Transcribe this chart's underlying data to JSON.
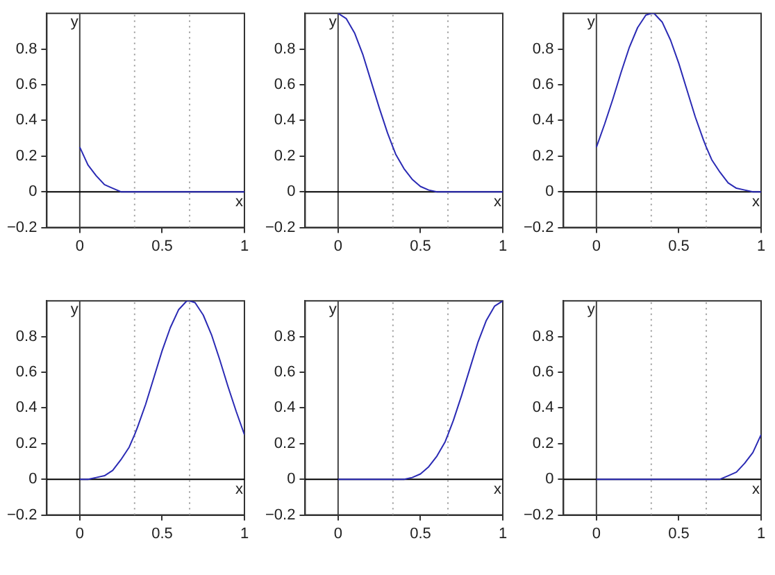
{
  "chart_data": [
    {
      "type": "line",
      "x": [
        0,
        0.05,
        0.1,
        0.15,
        0.2,
        0.25,
        0.3,
        0.333,
        0.35,
        0.4,
        0.45,
        0.5,
        0.55,
        0.6,
        0.65,
        0.667,
        0.7,
        0.75,
        0.8,
        0.85,
        0.9,
        0.95,
        1
      ],
      "values": [
        0.25,
        0.15,
        0.09,
        0.04,
        0.02,
        0,
        0,
        0,
        0,
        0,
        0,
        0,
        0,
        0,
        0,
        0,
        0,
        0,
        0,
        0,
        0,
        0,
        0
      ],
      "color": "#2a2ab4",
      "xlim": [
        -0.2,
        1
      ],
      "ylim": [
        -0.2,
        1
      ],
      "xticks": [
        0,
        0.5,
        1
      ],
      "yticks": [
        -0.2,
        0,
        0.2,
        0.4,
        0.6,
        0.8
      ],
      "ref_lines": [
        {
          "axis": "x",
          "value": 0,
          "label": "y",
          "color": "#444444"
        },
        {
          "axis": "y",
          "value": 0,
          "label": "x",
          "color": "#000000"
        },
        {
          "axis": "x",
          "value": 0.333,
          "color": "#999999",
          "line_style": "dotted"
        },
        {
          "axis": "x",
          "value": 0.667,
          "color": "#999999",
          "line_style": "dotted"
        }
      ]
    },
    {
      "type": "line",
      "x": [
        0,
        0.05,
        0.1,
        0.15,
        0.2,
        0.25,
        0.3,
        0.333,
        0.35,
        0.4,
        0.45,
        0.5,
        0.55,
        0.6,
        0.65,
        0.667,
        0.7,
        0.75,
        0.8,
        0.85,
        0.9,
        0.95,
        1
      ],
      "values": [
        1,
        0.97,
        0.89,
        0.77,
        0.62,
        0.47,
        0.33,
        0.25,
        0.21,
        0.13,
        0.07,
        0.03,
        0.01,
        0,
        0,
        0,
        0,
        0,
        0,
        0,
        0,
        0,
        0
      ],
      "color": "#2a2ab4",
      "xlim": [
        -0.2,
        1
      ],
      "ylim": [
        -0.2,
        1
      ],
      "xticks": [
        0,
        0.5,
        1
      ],
      "yticks": [
        -0.2,
        0,
        0.2,
        0.4,
        0.6,
        0.8
      ],
      "ref_lines": [
        {
          "axis": "x",
          "value": 0,
          "label": "y",
          "color": "#444444"
        },
        {
          "axis": "y",
          "value": 0,
          "label": "x",
          "color": "#000000"
        },
        {
          "axis": "x",
          "value": 0.333,
          "color": "#999999",
          "line_style": "dotted"
        },
        {
          "axis": "x",
          "value": 0.667,
          "color": "#999999",
          "line_style": "dotted"
        }
      ]
    },
    {
      "type": "line",
      "x": [
        0,
        0.05,
        0.1,
        0.15,
        0.2,
        0.25,
        0.3,
        0.333,
        0.35,
        0.4,
        0.45,
        0.5,
        0.55,
        0.6,
        0.65,
        0.667,
        0.7,
        0.75,
        0.8,
        0.85,
        0.9,
        0.95,
        1
      ],
      "values": [
        0.25,
        0.38,
        0.52,
        0.67,
        0.81,
        0.92,
        0.99,
        1,
        1,
        0.95,
        0.85,
        0.72,
        0.57,
        0.42,
        0.29,
        0.25,
        0.18,
        0.11,
        0.05,
        0.02,
        0.01,
        0,
        0
      ],
      "color": "#2a2ab4",
      "xlim": [
        -0.2,
        1
      ],
      "ylim": [
        -0.2,
        1
      ],
      "xticks": [
        0,
        0.5,
        1
      ],
      "yticks": [
        -0.2,
        0,
        0.2,
        0.4,
        0.6,
        0.8
      ],
      "ref_lines": [
        {
          "axis": "x",
          "value": 0,
          "label": "y",
          "color": "#444444"
        },
        {
          "axis": "y",
          "value": 0,
          "label": "x",
          "color": "#000000"
        },
        {
          "axis": "x",
          "value": 0.333,
          "color": "#999999",
          "line_style": "dotted"
        },
        {
          "axis": "x",
          "value": 0.667,
          "color": "#999999",
          "line_style": "dotted"
        }
      ]
    },
    {
      "type": "line",
      "x": [
        0,
        0.05,
        0.1,
        0.15,
        0.2,
        0.25,
        0.3,
        0.333,
        0.35,
        0.4,
        0.45,
        0.5,
        0.55,
        0.6,
        0.65,
        0.667,
        0.7,
        0.75,
        0.8,
        0.85,
        0.9,
        0.95,
        1
      ],
      "values": [
        0,
        0,
        0.01,
        0.02,
        0.05,
        0.11,
        0.18,
        0.25,
        0.29,
        0.42,
        0.57,
        0.72,
        0.85,
        0.95,
        1,
        1,
        0.99,
        0.92,
        0.81,
        0.67,
        0.52,
        0.38,
        0.25
      ],
      "color": "#2a2ab4",
      "xlim": [
        -0.2,
        1
      ],
      "ylim": [
        -0.2,
        1
      ],
      "xticks": [
        0,
        0.5,
        1
      ],
      "yticks": [
        -0.2,
        0,
        0.2,
        0.4,
        0.6,
        0.8
      ],
      "ref_lines": [
        {
          "axis": "x",
          "value": 0,
          "label": "y",
          "color": "#444444"
        },
        {
          "axis": "y",
          "value": 0,
          "label": "x",
          "color": "#000000"
        },
        {
          "axis": "x",
          "value": 0.333,
          "color": "#999999",
          "line_style": "dotted"
        },
        {
          "axis": "x",
          "value": 0.667,
          "color": "#999999",
          "line_style": "dotted"
        }
      ]
    },
    {
      "type": "line",
      "x": [
        0,
        0.05,
        0.1,
        0.15,
        0.2,
        0.25,
        0.3,
        0.333,
        0.35,
        0.4,
        0.45,
        0.5,
        0.55,
        0.6,
        0.65,
        0.667,
        0.7,
        0.75,
        0.8,
        0.85,
        0.9,
        0.95,
        1
      ],
      "values": [
        0,
        0,
        0,
        0,
        0,
        0,
        0,
        0,
        0,
        0,
        0.01,
        0.03,
        0.07,
        0.13,
        0.21,
        0.25,
        0.33,
        0.47,
        0.62,
        0.77,
        0.89,
        0.97,
        1
      ],
      "color": "#2a2ab4",
      "xlim": [
        -0.2,
        1
      ],
      "ylim": [
        -0.2,
        1
      ],
      "xticks": [
        0,
        0.5,
        1
      ],
      "yticks": [
        -0.2,
        0,
        0.2,
        0.4,
        0.6,
        0.8
      ],
      "ref_lines": [
        {
          "axis": "x",
          "value": 0,
          "label": "y",
          "color": "#444444"
        },
        {
          "axis": "y",
          "value": 0,
          "label": "x",
          "color": "#000000"
        },
        {
          "axis": "x",
          "value": 0.333,
          "color": "#999999",
          "line_style": "dotted"
        },
        {
          "axis": "x",
          "value": 0.667,
          "color": "#999999",
          "line_style": "dotted"
        }
      ]
    },
    {
      "type": "line",
      "x": [
        0,
        0.05,
        0.1,
        0.15,
        0.2,
        0.25,
        0.3,
        0.333,
        0.35,
        0.4,
        0.45,
        0.5,
        0.55,
        0.6,
        0.65,
        0.667,
        0.7,
        0.75,
        0.8,
        0.85,
        0.9,
        0.95,
        1
      ],
      "values": [
        0,
        0,
        0,
        0,
        0,
        0,
        0,
        0,
        0,
        0,
        0,
        0,
        0,
        0,
        0,
        0,
        0,
        0,
        0.02,
        0.04,
        0.09,
        0.15,
        0.25
      ],
      "color": "#2a2ab4",
      "xlim": [
        -0.2,
        1
      ],
      "ylim": [
        -0.2,
        1
      ],
      "xticks": [
        0,
        0.5,
        1
      ],
      "yticks": [
        -0.2,
        0,
        0.2,
        0.4,
        0.6,
        0.8
      ],
      "ref_lines": [
        {
          "axis": "x",
          "value": 0,
          "label": "y",
          "color": "#444444"
        },
        {
          "axis": "y",
          "value": 0,
          "label": "x",
          "color": "#000000"
        },
        {
          "axis": "x",
          "value": 0.333,
          "color": "#999999",
          "line_style": "dotted"
        },
        {
          "axis": "x",
          "value": 0.667,
          "color": "#999999",
          "line_style": "dotted"
        }
      ]
    }
  ]
}
